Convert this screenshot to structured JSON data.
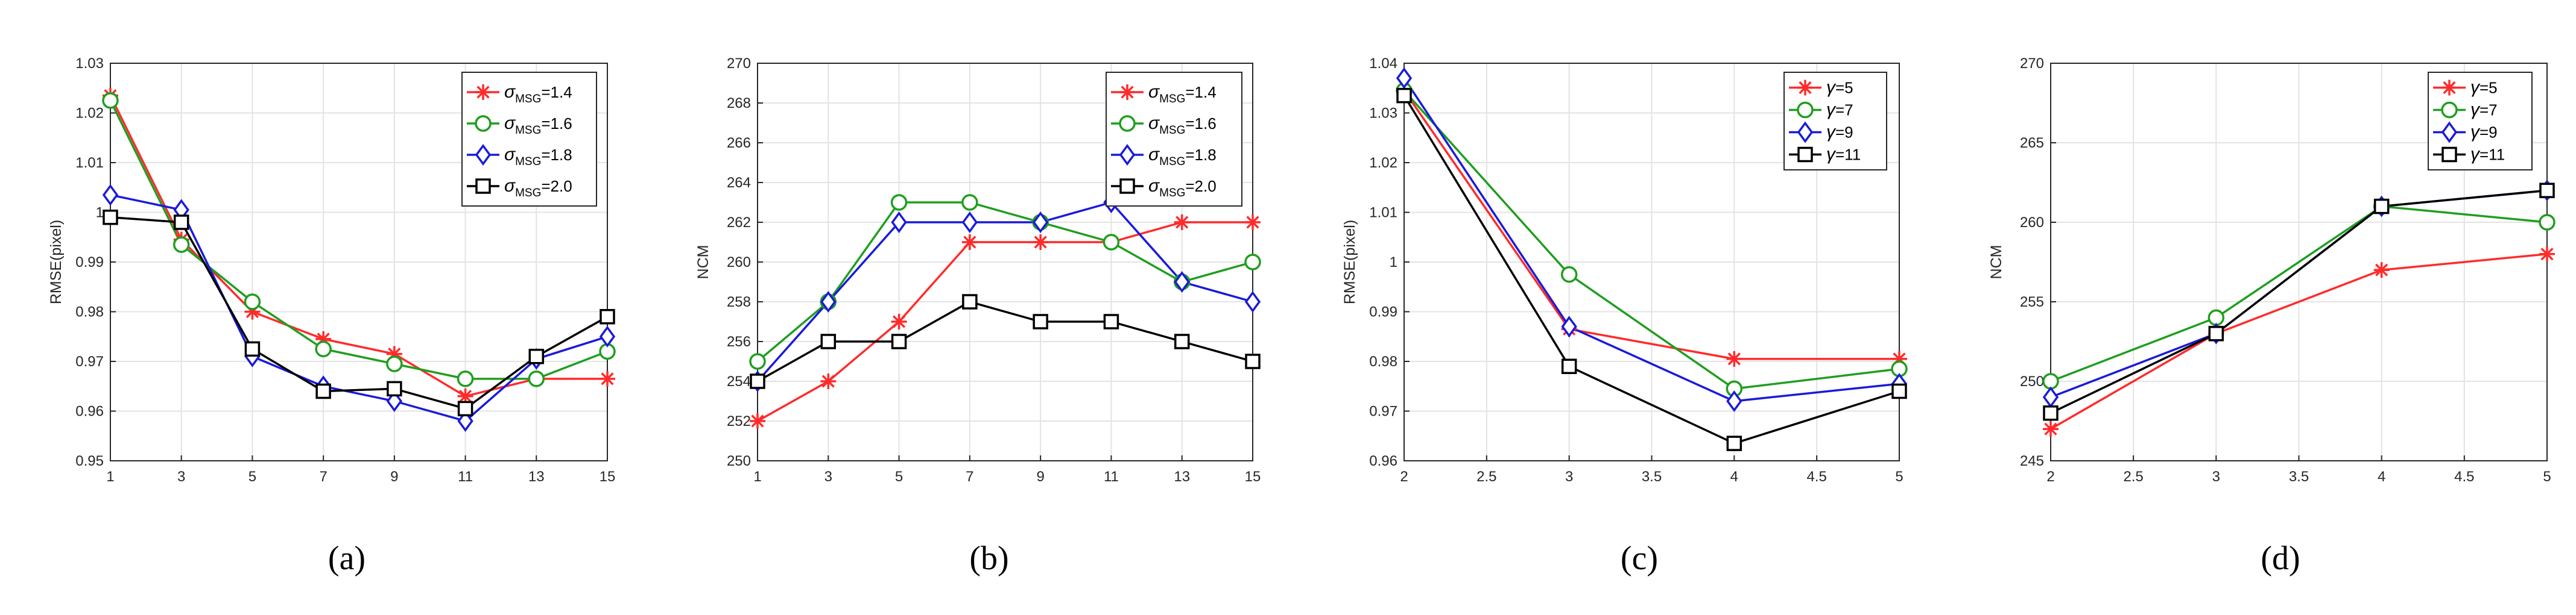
{
  "colors": {
    "red": "#ff2b2b",
    "green": "#1f9e1f",
    "blue": "#1a1adb",
    "black": "#000000",
    "grid": "#e3e3e3",
    "axis": "#262626"
  },
  "chart_data": [
    {
      "type": "line",
      "label": "(a)",
      "ylabel": "RMSE(pixel)",
      "xlabel": "",
      "xlim": [
        1,
        15
      ],
      "ylim": [
        0.95,
        1.03
      ],
      "xticks": [
        1,
        3,
        5,
        7,
        9,
        11,
        13,
        15
      ],
      "xtick_labels": [
        "1",
        "3",
        "5",
        "7",
        "9",
        "11",
        "13",
        "15"
      ],
      "yticks": [
        0.95,
        0.96,
        0.97,
        0.98,
        0.99,
        1.0,
        1.01,
        1.02,
        1.03
      ],
      "ytick_labels": [
        "0.95",
        "0.96",
        "0.97",
        "0.98",
        "0.99",
        "1",
        "1.01",
        "1.02",
        "1.03"
      ],
      "grid": true,
      "legend_position": "top-right",
      "x": [
        1,
        3,
        5,
        7,
        9,
        11,
        13,
        15
      ],
      "series": [
        {
          "sym": "σ",
          "sub": "MSG",
          "eq": "=1.4",
          "color": "#ff2b2b",
          "marker": "star",
          "values": [
            1.0235,
            0.9945,
            0.98,
            0.9745,
            0.9715,
            0.963,
            0.9665,
            0.9665
          ]
        },
        {
          "sym": "σ",
          "sub": "MSG",
          "eq": "=1.6",
          "color": "#1f9e1f",
          "marker": "circle",
          "values": [
            1.0225,
            0.9935,
            0.982,
            0.9725,
            0.9695,
            0.9665,
            0.9665,
            0.972
          ]
        },
        {
          "sym": "σ",
          "sub": "MSG",
          "eq": "=1.8",
          "color": "#1a1adb",
          "marker": "diamond",
          "values": [
            1.0035,
            1.0005,
            0.971,
            0.965,
            0.962,
            0.958,
            0.9705,
            0.975
          ]
        },
        {
          "sym": "σ",
          "sub": "MSG",
          "eq": "=2.0",
          "color": "#000000",
          "marker": "square",
          "values": [
            0.999,
            0.998,
            0.9725,
            0.964,
            0.9645,
            0.9605,
            0.971,
            0.979
          ]
        }
      ]
    },
    {
      "type": "line",
      "label": "(b)",
      "ylabel": "NCM",
      "xlabel": "",
      "xlim": [
        1,
        15
      ],
      "ylim": [
        250,
        270
      ],
      "xticks": [
        1,
        3,
        5,
        7,
        9,
        11,
        13,
        15
      ],
      "xtick_labels": [
        "1",
        "3",
        "5",
        "7",
        "9",
        "11",
        "13",
        "15"
      ],
      "yticks": [
        250,
        252,
        254,
        256,
        258,
        260,
        262,
        264,
        266,
        268,
        270
      ],
      "ytick_labels": [
        "250",
        "252",
        "254",
        "256",
        "258",
        "260",
        "262",
        "264",
        "266",
        "268",
        "270"
      ],
      "grid": true,
      "legend_position": "top-right",
      "x": [
        1,
        3,
        5,
        7,
        9,
        11,
        13,
        15
      ],
      "series": [
        {
          "sym": "σ",
          "sub": "MSG",
          "eq": "=1.4",
          "color": "#ff2b2b",
          "marker": "star",
          "values": [
            252,
            254,
            257,
            261,
            261,
            261,
            262,
            262
          ]
        },
        {
          "sym": "σ",
          "sub": "MSG",
          "eq": "=1.6",
          "color": "#1f9e1f",
          "marker": "circle",
          "values": [
            255,
            258,
            263,
            263,
            262,
            261,
            259,
            260
          ]
        },
        {
          "sym": "σ",
          "sub": "MSG",
          "eq": "=1.8",
          "color": "#1a1adb",
          "marker": "diamond",
          "values": [
            254,
            258,
            262,
            262,
            262,
            263,
            259,
            258
          ]
        },
        {
          "sym": "σ",
          "sub": "MSG",
          "eq": "=2.0",
          "color": "#000000",
          "marker": "square",
          "values": [
            254,
            256,
            256,
            258,
            257,
            257,
            256,
            255
          ]
        }
      ]
    },
    {
      "type": "line",
      "label": "(c)",
      "ylabel": "RMSE(pixel)",
      "xlabel": "",
      "xlim": [
        2,
        5
      ],
      "ylim": [
        0.96,
        1.04
      ],
      "xticks": [
        2,
        2.5,
        3,
        3.5,
        4,
        4.5,
        5
      ],
      "xtick_labels": [
        "2",
        "2.5",
        "3",
        "3.5",
        "4",
        "4.5",
        "5"
      ],
      "yticks": [
        0.96,
        0.97,
        0.98,
        0.99,
        1.0,
        1.01,
        1.02,
        1.03,
        1.04
      ],
      "ytick_labels": [
        "0.96",
        "0.97",
        "0.98",
        "0.99",
        "1",
        "1.01",
        "1.02",
        "1.03",
        "1.04"
      ],
      "grid": true,
      "legend_position": "top-right",
      "x": [
        2,
        3,
        4,
        5
      ],
      "series": [
        {
          "sym": "γ",
          "sub": "",
          "eq": "=5",
          "color": "#ff2b2b",
          "marker": "star",
          "values": [
            1.0345,
            0.9865,
            0.9805,
            0.9805
          ]
        },
        {
          "sym": "γ",
          "sub": "",
          "eq": "=7",
          "color": "#1f9e1f",
          "marker": "circle",
          "values": [
            1.0345,
            0.9975,
            0.9745,
            0.9785
          ]
        },
        {
          "sym": "γ",
          "sub": "",
          "eq": "=9",
          "color": "#1a1adb",
          "marker": "diamond",
          "values": [
            1.037,
            0.987,
            0.972,
            0.9755
          ]
        },
        {
          "sym": "γ",
          "sub": "",
          "eq": "=11",
          "color": "#000000",
          "marker": "square",
          "values": [
            1.0335,
            0.979,
            0.9635,
            0.974
          ]
        }
      ]
    },
    {
      "type": "line",
      "label": "(d)",
      "ylabel": "NCM",
      "xlabel": "",
      "xlim": [
        2,
        5
      ],
      "ylim": [
        245,
        270
      ],
      "xticks": [
        2,
        2.5,
        3,
        3.5,
        4,
        4.5,
        5
      ],
      "xtick_labels": [
        "2",
        "2.5",
        "3",
        "3.5",
        "4",
        "4.5",
        "5"
      ],
      "yticks": [
        245,
        250,
        255,
        260,
        265,
        270
      ],
      "ytick_labels": [
        "245",
        "250",
        "255",
        "260",
        "265",
        "270"
      ],
      "grid": true,
      "legend_position": "top-right",
      "x": [
        2,
        3,
        4,
        5
      ],
      "series": [
        {
          "sym": "γ",
          "sub": "",
          "eq": "=5",
          "color": "#ff2b2b",
          "marker": "star",
          "values": [
            247,
            253,
            257,
            258
          ]
        },
        {
          "sym": "γ",
          "sub": "",
          "eq": "=7",
          "color": "#1f9e1f",
          "marker": "circle",
          "values": [
            250,
            254,
            261,
            260
          ]
        },
        {
          "sym": "γ",
          "sub": "",
          "eq": "=9",
          "color": "#1a1adb",
          "marker": "diamond",
          "values": [
            249,
            253,
            261,
            262
          ]
        },
        {
          "sym": "γ",
          "sub": "",
          "eq": "=11",
          "color": "#000000",
          "marker": "square",
          "values": [
            248,
            253,
            261,
            262
          ]
        }
      ]
    }
  ]
}
